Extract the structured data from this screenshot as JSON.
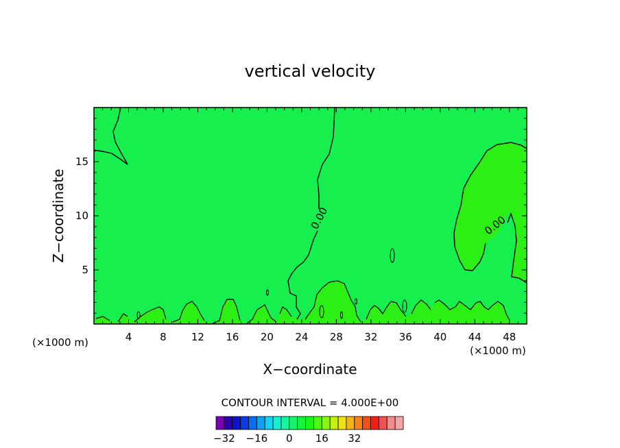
{
  "chart_data": {
    "type": "heatmap",
    "title": "vertical velocity",
    "xlabel": "X−coordinate",
    "ylabel": "Z−coordinate",
    "x_unit_left": "(×1000 m)",
    "x_unit_right": "(×1000 m)",
    "xlim": [
      0,
      50
    ],
    "ylim": [
      0,
      20
    ],
    "x_ticks": [
      4,
      8,
      12,
      16,
      20,
      24,
      28,
      32,
      36,
      40,
      44,
      48
    ],
    "x_tick_labels": [
      "4",
      "8",
      "12",
      "16",
      "20",
      "24",
      "28",
      "32",
      "36",
      "40",
      "44",
      "48"
    ],
    "y_ticks": [
      5,
      10,
      15
    ],
    "y_tick_labels": [
      "5",
      "10",
      "15"
    ],
    "contour_labels": [
      "0.00",
      "0.00"
    ],
    "contour_interval_text": "CONTOUR INTERVAL = 4.000E+00",
    "colorbar": {
      "min": -36,
      "step": 4,
      "tick_labels": [
        "−32",
        "−16",
        "0",
        "16",
        "32"
      ],
      "tick_values": [
        -32,
        -16,
        0,
        16,
        32
      ],
      "colors": [
        "#7a00b4",
        "#2c00a8",
        "#0c14c8",
        "#0a3ae6",
        "#0a6cf0",
        "#0fa0f5",
        "#13d2f5",
        "#14f0d2",
        "#14f5a0",
        "#14f56e",
        "#14f53c",
        "#1cf51c",
        "#52f514",
        "#8cf514",
        "#c4f014",
        "#f0e114",
        "#f5b414",
        "#f58214",
        "#f55014",
        "#f51e14",
        "#f55050",
        "#f58c8c",
        "#f5a5a5"
      ]
    },
    "regions": {
      "negative_fill": "#15f04f",
      "positive_fill": "#2cf014"
    }
  }
}
